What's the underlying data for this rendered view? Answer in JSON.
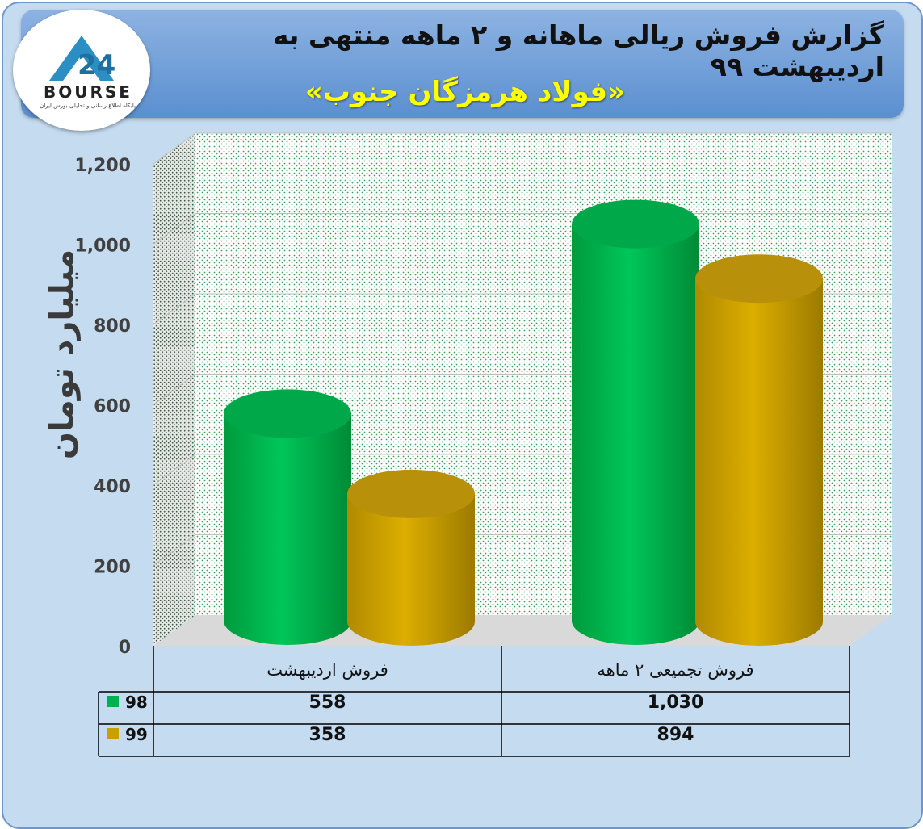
{
  "header": {
    "title": "گزارش فروش ریالی ماهانه و ۲ ماهه منتهی به اردیبهشت ۹۹",
    "subtitle": "«فولاد هرمزگان جنوب»"
  },
  "logo": {
    "text": "BOURSE",
    "tagline": "پایگاه اطلاع رسانی و تحلیلی بورس ایران"
  },
  "colors": {
    "series_98": "#00b050",
    "series_99": "#c9a000",
    "background": "#c5dbf0",
    "header": "#5b8fd0"
  },
  "chart_data": {
    "type": "bar",
    "style": "3d-cylinder",
    "categories": [
      "فروش اردیبهشت",
      "فروش تجمیعی ۲ ماهه"
    ],
    "series": [
      {
        "name": "98",
        "color": "#00b050",
        "values": [
          558,
          1030
        ]
      },
      {
        "name": "99",
        "color": "#c9a000",
        "values": [
          358,
          894
        ]
      }
    ],
    "ylabel": "میلیارد تومان",
    "ylim": [
      0,
      1200
    ],
    "yticks": [
      0,
      200,
      400,
      600,
      800,
      1000,
      1200
    ],
    "ytick_labels": [
      "0",
      "200",
      "400",
      "600",
      "800",
      "1,000",
      "1,200"
    ],
    "data_table": {
      "rows": [
        {
          "label": "98",
          "values": [
            "558",
            "1,030"
          ]
        },
        {
          "label": "99",
          "values": [
            "358",
            "894"
          ]
        }
      ]
    },
    "grid": true
  }
}
